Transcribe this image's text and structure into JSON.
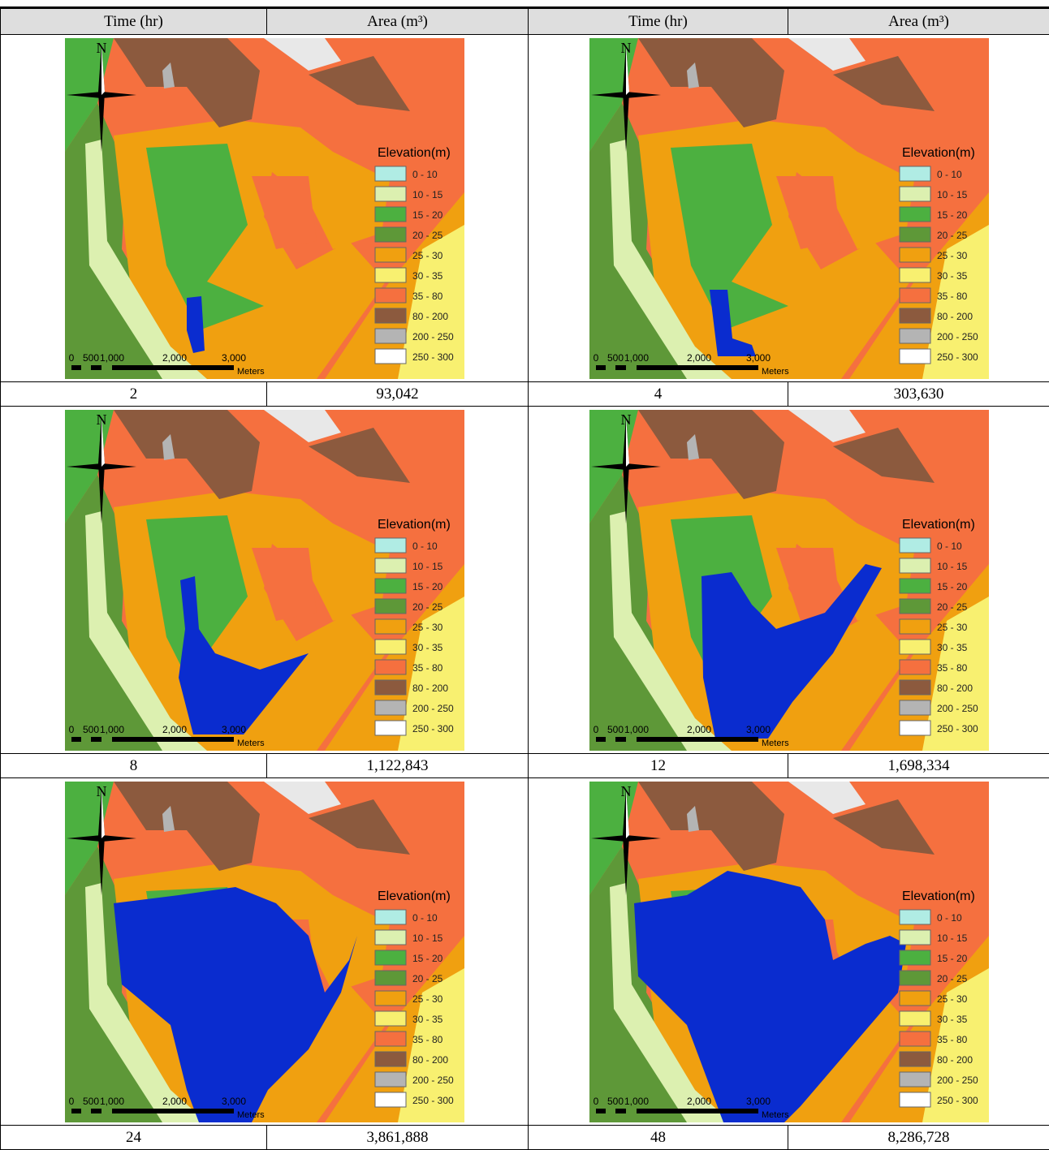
{
  "header": [
    "Time (hr)",
    "Area (m³)",
    "Time (hr)",
    "Area (m³)"
  ],
  "map": {
    "north": "N",
    "legend_title": "Elevation(m)",
    "legend": [
      {
        "label": "0 - 10",
        "color": "#b0ece4"
      },
      {
        "label": "10 - 15",
        "color": "#dcf0b0"
      },
      {
        "label": "15 - 20",
        "color": "#4cb040"
      },
      {
        "label": "20 - 25",
        "color": "#5e9838"
      },
      {
        "label": "25 - 30",
        "color": "#f0a010"
      },
      {
        "label": "30 - 35",
        "color": "#f8f070"
      },
      {
        "label": "35 - 80",
        "color": "#f5703f"
      },
      {
        "label": "80 - 200",
        "color": "#8c5a3e"
      },
      {
        "label": "200 - 250",
        "color": "#b4b4b4"
      },
      {
        "label": "250 - 300",
        "color": "#ffffff"
      }
    ],
    "scale": [
      "0",
      "500",
      "1,000",
      "2,000",
      "3,000"
    ],
    "scale_unit": "Meters"
  },
  "results": [
    {
      "time": "2",
      "area": "93,042"
    },
    {
      "time": "4",
      "area": "303,630"
    },
    {
      "time": "8",
      "area": "1,122,843"
    },
    {
      "time": "12",
      "area": "1,698,334"
    },
    {
      "time": "24",
      "area": "3,861,888"
    },
    {
      "time": "48",
      "area": "8,286,728"
    }
  ]
}
